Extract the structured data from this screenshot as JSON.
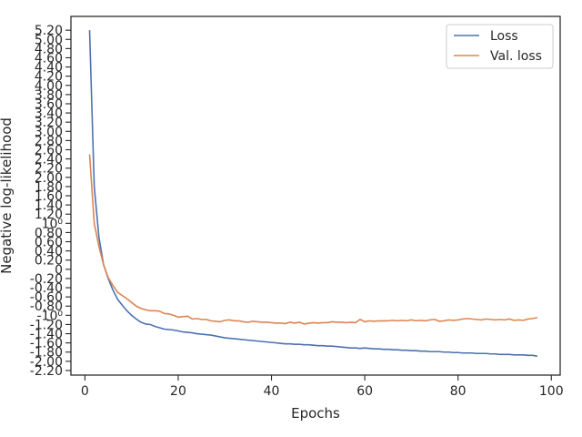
{
  "chart_data": {
    "type": "line",
    "xlabel": "Epochs",
    "ylabel": "Negative log-likelihood",
    "xlim": [
      -3,
      101.9
    ],
    "ylim": [
      -2.3,
      5.5
    ],
    "xticks": [
      0,
      20,
      40,
      60,
      80,
      100
    ],
    "xtick_labels": [
      "0",
      "20",
      "40",
      "60",
      "80",
      "100"
    ],
    "yticks": [
      -2.2,
      -2.0,
      -1.8,
      -1.6,
      -1.4,
      -1.2,
      -1.0,
      -0.8,
      -0.6,
      -0.4,
      -0.2,
      0,
      0.2,
      0.4,
      0.6,
      0.8,
      1.0,
      1.2,
      1.4,
      1.6,
      1.8,
      2.0,
      2.2,
      2.4,
      2.6,
      2.8,
      3.0,
      3.2,
      3.4,
      3.6,
      3.8,
      4.0,
      4.2,
      4.4,
      4.6,
      4.8,
      5.0,
      5.2
    ],
    "ytick_labels": [
      "-2.20",
      "-2.00",
      "-1.80",
      "-1.60",
      "-1.40",
      "-1.20",
      "-10⁰",
      "-0.80",
      "-0.60",
      "-0.40",
      "-0.20",
      "0",
      "0.20",
      "0.40",
      "0.60",
      "0.80",
      "10⁰",
      "1.20",
      "1.40",
      "1.60",
      "1.80",
      "2.00",
      "2.20",
      "2.40",
      "2.60",
      "2.80",
      "3.00",
      "3.20",
      "3.40",
      "3.60",
      "3.80",
      "4.00",
      "4.20",
      "4.40",
      "4.60",
      "4.80",
      "5.00",
      "5.20"
    ],
    "legend_position": "top-right",
    "series": [
      {
        "name": "Loss",
        "color": "#4c72b0",
        "values": [
          5.2,
          1.8,
          0.7,
          0.1,
          -0.2,
          -0.45,
          -0.65,
          -0.78,
          -0.9,
          -1.0,
          -1.08,
          -1.15,
          -1.19,
          -1.2,
          -1.24,
          -1.27,
          -1.3,
          -1.31,
          -1.32,
          -1.34,
          -1.36,
          -1.37,
          -1.38,
          -1.4,
          -1.41,
          -1.42,
          -1.43,
          -1.45,
          -1.47,
          -1.49,
          -1.5,
          -1.51,
          -1.52,
          -1.53,
          -1.54,
          -1.55,
          -1.56,
          -1.57,
          -1.58,
          -1.59,
          -1.6,
          -1.61,
          -1.62,
          -1.62,
          -1.63,
          -1.63,
          -1.64,
          -1.64,
          -1.65,
          -1.66,
          -1.66,
          -1.67,
          -1.67,
          -1.68,
          -1.69,
          -1.7,
          -1.71,
          -1.71,
          -1.72,
          -1.71,
          -1.72,
          -1.73,
          -1.73,
          -1.74,
          -1.74,
          -1.75,
          -1.75,
          -1.76,
          -1.76,
          -1.77,
          -1.77,
          -1.78,
          -1.78,
          -1.79,
          -1.79,
          -1.79,
          -1.8,
          -1.8,
          -1.81,
          -1.81,
          -1.82,
          -1.82,
          -1.82,
          -1.83,
          -1.83,
          -1.83,
          -1.84,
          -1.84,
          -1.85,
          -1.85,
          -1.85,
          -1.86,
          -1.86,
          -1.86,
          -1.87,
          -1.87,
          -1.89
        ]
      },
      {
        "name": "Val. loss",
        "color": "#dd8452",
        "values": [
          2.5,
          1.0,
          0.5,
          0.1,
          -0.18,
          -0.35,
          -0.5,
          -0.57,
          -0.64,
          -0.72,
          -0.8,
          -0.85,
          -0.88,
          -0.9,
          -0.9,
          -0.91,
          -0.96,
          -0.97,
          -1.0,
          -1.04,
          -1.03,
          -1.02,
          -1.08,
          -1.07,
          -1.09,
          -1.09,
          -1.12,
          -1.13,
          -1.14,
          -1.11,
          -1.1,
          -1.12,
          -1.12,
          -1.14,
          -1.15,
          -1.13,
          -1.14,
          -1.15,
          -1.15,
          -1.16,
          -1.17,
          -1.17,
          -1.18,
          -1.15,
          -1.17,
          -1.15,
          -1.19,
          -1.17,
          -1.16,
          -1.17,
          -1.16,
          -1.16,
          -1.14,
          -1.15,
          -1.15,
          -1.16,
          -1.15,
          -1.16,
          -1.09,
          -1.14,
          -1.12,
          -1.13,
          -1.12,
          -1.12,
          -1.12,
          -1.11,
          -1.12,
          -1.11,
          -1.12,
          -1.1,
          -1.12,
          -1.11,
          -1.12,
          -1.1,
          -1.09,
          -1.13,
          -1.12,
          -1.1,
          -1.11,
          -1.1,
          -1.08,
          -1.07,
          -1.08,
          -1.09,
          -1.1,
          -1.08,
          -1.09,
          -1.1,
          -1.09,
          -1.1,
          -1.08,
          -1.11,
          -1.1,
          -1.11,
          -1.08,
          -1.07,
          -1.05
        ]
      }
    ]
  }
}
